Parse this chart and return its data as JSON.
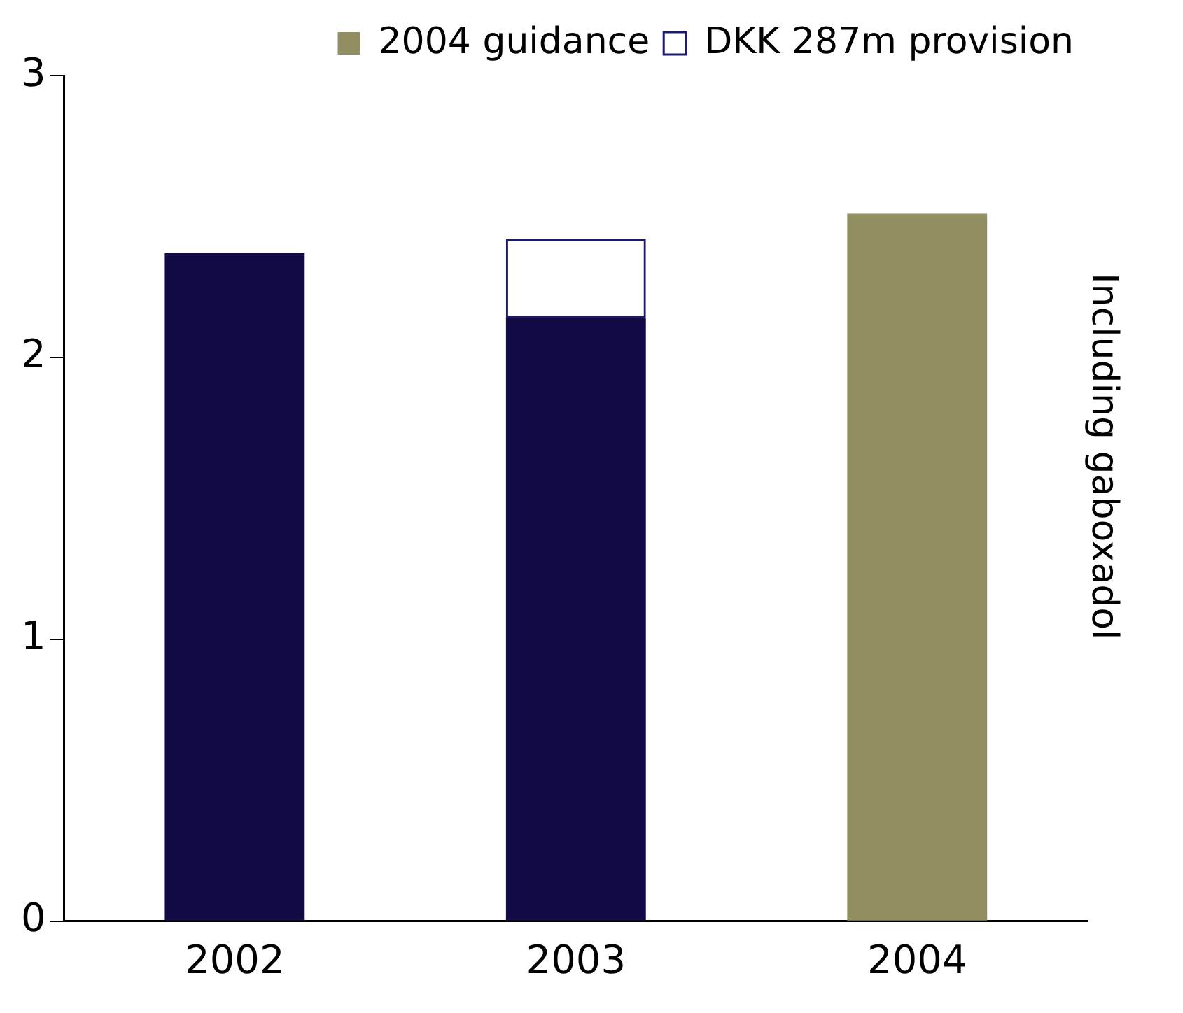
{
  "chart_data": {
    "type": "bar",
    "stacked": true,
    "categories": [
      "2002",
      "2003",
      "2004"
    ],
    "series": [
      {
        "color": "#120a45",
        "values": [
          2.37,
          2.14,
          null
        ]
      },
      {
        "name": "2004 guidance",
        "color": "#918e62",
        "values": [
          null,
          null,
          2.51
        ]
      },
      {
        "name": "DKK 287m provision",
        "color": "#1a1a6e",
        "line_style": "dashed",
        "values": [
          null,
          0.28,
          null
        ]
      }
    ],
    "ylim": [
      0,
      3
    ],
    "yticks": [
      0,
      1,
      2,
      3
    ],
    "grid": false,
    "legend": "top",
    "annotations": [
      "Including gaboxadol"
    ]
  }
}
